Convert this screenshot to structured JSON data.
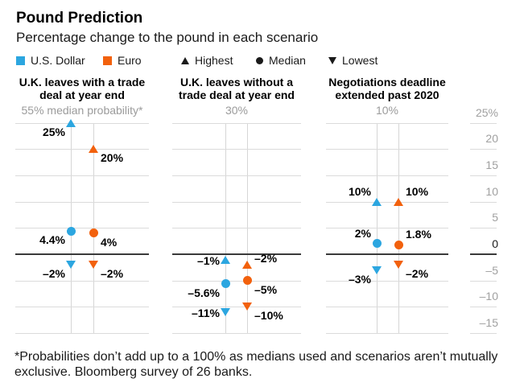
{
  "chart_data": {
    "type": "scatter",
    "title": "Pound Prediction",
    "subtitle": "Percentage change to the pound in each scenario",
    "legend": {
      "dollar": "U.S. Dollar",
      "euro": "Euro",
      "highest": "Highest",
      "median": "Median",
      "lowest": "Lowest"
    },
    "ylim": [
      -15,
      25
    ],
    "ytick_interval": 5,
    "ytick_labels": [
      "25%",
      "20",
      "15",
      "10",
      "5",
      "0",
      "–5",
      "–10",
      "–15"
    ],
    "grid": true,
    "legend_position": "top",
    "colors": {
      "dollar": "#2CA6E0",
      "euro": "#F2610D",
      "grid": "#DBDBDB",
      "zero_line": "#3A3A3A",
      "axis_text": "#A0A0A0",
      "muted_text": "#9B9B9B"
    },
    "panels": [
      {
        "title": "U.K. leaves with a trade deal at year end",
        "probability": "55% median probability*",
        "points": [
          {
            "series": "usd",
            "stat": "highest",
            "value": 25,
            "label": "25%",
            "side": "left",
            "valign": "below"
          },
          {
            "series": "euro",
            "stat": "highest",
            "value": 20,
            "label": "20%",
            "side": "right",
            "valign": "below"
          },
          {
            "series": "usd",
            "stat": "median",
            "value": 4.4,
            "label": "4.4%",
            "side": "left",
            "valign": "below"
          },
          {
            "series": "euro",
            "stat": "median",
            "value": 4,
            "label": "4%",
            "side": "right",
            "valign": "below"
          },
          {
            "series": "usd",
            "stat": "lowest",
            "value": -2,
            "label": "–2%",
            "side": "left",
            "valign": "below"
          },
          {
            "series": "euro",
            "stat": "lowest",
            "value": -2,
            "label": "–2%",
            "side": "right",
            "valign": "below"
          }
        ]
      },
      {
        "title": "U.K. leaves without a trade deal at year end",
        "probability": "30%",
        "points": [
          {
            "series": "usd",
            "stat": "highest",
            "value": -1,
            "label": "–1%",
            "side": "left",
            "valign": "middle"
          },
          {
            "series": "euro",
            "stat": "highest",
            "value": -2,
            "label": "–2%",
            "side": "right",
            "valign": "mid-above"
          },
          {
            "series": "usd",
            "stat": "median",
            "value": -5.6,
            "label": "–5.6%",
            "side": "left",
            "valign": "below"
          },
          {
            "series": "euro",
            "stat": "median",
            "value": -5,
            "label": "–5%",
            "side": "right",
            "valign": "below"
          },
          {
            "series": "usd",
            "stat": "lowest",
            "value": -11,
            "label": "–11%",
            "side": "left",
            "valign": "middle"
          },
          {
            "series": "euro",
            "stat": "lowest",
            "value": -10,
            "label": "–10%",
            "side": "right",
            "valign": "below"
          }
        ]
      },
      {
        "title": "Negotiations deadline extended past 2020",
        "probability": "10%",
        "points": [
          {
            "series": "usd",
            "stat": "highest",
            "value": 10,
            "label": "10%",
            "side": "left",
            "valign": "above"
          },
          {
            "series": "euro",
            "stat": "highest",
            "value": 10,
            "label": "10%",
            "side": "right",
            "valign": "above"
          },
          {
            "series": "usd",
            "stat": "median",
            "value": 2,
            "label": "2%",
            "side": "left",
            "valign": "above"
          },
          {
            "series": "euro",
            "stat": "median",
            "value": 1.8,
            "label": "1.8%",
            "side": "right",
            "valign": "above"
          },
          {
            "series": "usd",
            "stat": "lowest",
            "value": -3,
            "label": "–3%",
            "side": "left",
            "valign": "below"
          },
          {
            "series": "euro",
            "stat": "lowest",
            "value": -2,
            "label": "–2%",
            "side": "right",
            "valign": "below"
          }
        ]
      }
    ],
    "footnote": "*Probabilities don’t add up to a 100% as medians used and scenarios aren’t mutually exclusive. Bloomberg survey of 26 banks."
  }
}
